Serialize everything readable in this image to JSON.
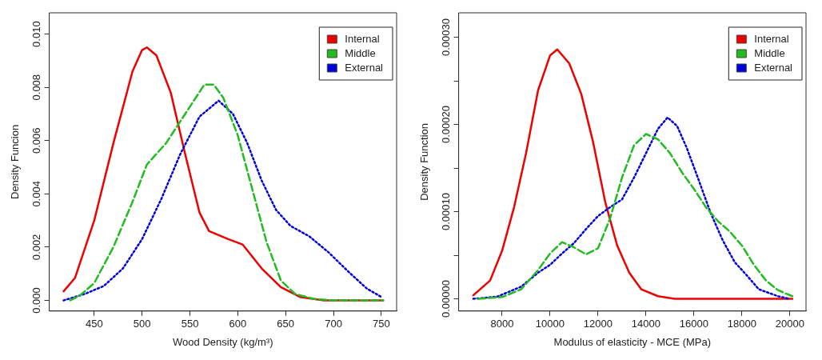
{
  "chart_data": [
    {
      "type": "line",
      "xlabel": "Wood Density (kg/m³)",
      "ylabel": "Density Funcion",
      "xlim": [
        403,
        766
      ],
      "ylim": [
        -0.0004,
        0.0108
      ],
      "xticks": [
        450,
        500,
        550,
        600,
        650,
        700,
        750
      ],
      "yticks": [
        {
          "value": 0,
          "label": "0.000"
        },
        {
          "value": 0.002,
          "label": "0.002"
        },
        {
          "value": 0.004,
          "label": "0.004"
        },
        {
          "value": 0.006,
          "label": "0.006"
        },
        {
          "value": 0.008,
          "label": "0.008"
        },
        {
          "value": 0.01,
          "label": "0.010"
        }
      ],
      "grid": false,
      "legend": "top right",
      "marker": "none",
      "series": [
        {
          "name": "Internal",
          "color": "#ee0000",
          "line_style": "solid",
          "x": [
            418,
            430,
            450,
            470,
            490,
            500,
            505,
            515,
            530,
            545,
            560,
            570,
            590,
            605,
            625,
            645,
            665,
            690,
            752
          ],
          "values": [
            0.00034,
            0.00085,
            0.003,
            0.0059,
            0.0086,
            0.0094,
            0.0095,
            0.0092,
            0.0078,
            0.0055,
            0.0033,
            0.0026,
            0.0023,
            0.0021,
            0.0012,
            0.0005,
            0.00013,
            0,
            0
          ]
        },
        {
          "name": "Middle",
          "color": "#22bb22",
          "line_style": "dashed",
          "x": [
            425,
            435,
            450,
            470,
            490,
            505,
            525,
            545,
            565,
            575,
            585,
            600,
            615,
            630,
            645,
            660,
            680,
            700,
            752
          ],
          "values": [
            0,
            0.00018,
            0.00065,
            0.002,
            0.0037,
            0.0051,
            0.0059,
            0.007,
            0.0081,
            0.0081,
            0.0076,
            0.0062,
            0.0042,
            0.0022,
            0.00075,
            0.00024,
            5e-05,
            0,
            0
          ]
        },
        {
          "name": "External",
          "color": "#0000dd",
          "line_style": "dotted",
          "x": [
            418,
            440,
            460,
            480,
            500,
            520,
            540,
            560,
            580,
            595,
            610,
            625,
            640,
            655,
            675,
            695,
            715,
            735,
            750
          ],
          "values": [
            0,
            0.00024,
            0.00054,
            0.0012,
            0.0023,
            0.0038,
            0.0055,
            0.0069,
            0.0075,
            0.007,
            0.0059,
            0.0045,
            0.0034,
            0.0028,
            0.0024,
            0.0018,
            0.0011,
            0.00044,
            0.00013
          ]
        }
      ]
    },
    {
      "type": "line",
      "xlabel": "Modulus of elasticity - MCE (MPa)",
      "ylabel": "Density Function",
      "xlim": [
        6190,
        20670
      ],
      "ylim": [
        -1.4e-05,
        0.000328
      ],
      "xticks": [
        8000,
        10000,
        12000,
        14000,
        16000,
        18000,
        20000
      ],
      "yticks": [
        {
          "value": 0,
          "label": "0.00000"
        },
        {
          "value": 5e-05,
          "label": null
        },
        {
          "value": 0.0001,
          "label": "0.00010"
        },
        {
          "value": 0.00015,
          "label": null
        },
        {
          "value": 0.0002,
          "label": "0.00020"
        },
        {
          "value": 0.00025,
          "label": null
        },
        {
          "value": 0.0003,
          "label": "0.00030"
        }
      ],
      "grid": false,
      "legend": "top right",
      "marker": "none",
      "series": [
        {
          "name": "Internal",
          "color": "#ee0000",
          "line_style": "solid",
          "x": [
            6800,
            7500,
            8000,
            8500,
            9000,
            9500,
            10000,
            10300,
            10800,
            11300,
            11800,
            12300,
            12800,
            13300,
            13800,
            14500,
            15200,
            20100
          ],
          "values": [
            4e-06,
            2.1e-05,
            5.5e-05,
            0.000105,
            0.000167,
            0.000239,
            0.000279,
            0.000286,
            0.00027,
            0.000235,
            0.000179,
            0.000111,
            6.1e-05,
            3e-05,
            1.1e-05,
            3e-06,
            0,
            0
          ]
        },
        {
          "name": "Middle",
          "color": "#22bb22",
          "line_style": "dashed",
          "x": [
            7000,
            8000,
            8800,
            9500,
            10000,
            10500,
            11000,
            11500,
            12000,
            12500,
            13000,
            13500,
            14000,
            14500,
            15000,
            15500,
            16000,
            16500,
            17000,
            17500,
            18000,
            18500,
            19000,
            19500,
            20100
          ],
          "values": [
            0,
            2e-06,
            1.1e-05,
            3.3e-05,
            5.2e-05,
            6.5e-05,
            5.9e-05,
            5.1e-05,
            5.8e-05,
            9.2e-05,
            0.000139,
            0.000176,
            0.000189,
            0.000183,
            0.000167,
            0.000145,
            0.000126,
            0.000105,
            8.9e-05,
            7.7e-05,
            6.1e-05,
            3.9e-05,
            2.1e-05,
            1e-05,
            3e-06
          ]
        },
        {
          "name": "External",
          "color": "#0000dd",
          "line_style": "dotted",
          "x": [
            6800,
            7800,
            8800,
            9500,
            10000,
            10500,
            11000,
            11500,
            12000,
            12500,
            13000,
            13500,
            14000,
            14500,
            14900,
            15300,
            15700,
            16200,
            16700,
            17200,
            17700,
            18200,
            18700,
            19500,
            20000
          ],
          "values": [
            0,
            2.5e-06,
            1.4e-05,
            3e-05,
            3.9e-05,
            5.2e-05,
            6.4e-05,
            8e-05,
            9.5e-05,
            0.000105,
            0.000114,
            0.000139,
            0.000167,
            0.000195,
            0.000208,
            0.000198,
            0.000173,
            0.000136,
            9.8e-05,
            6.7e-05,
            4.2e-05,
            2.7e-05,
            1.1e-05,
            3e-06,
            0
          ]
        }
      ]
    }
  ]
}
